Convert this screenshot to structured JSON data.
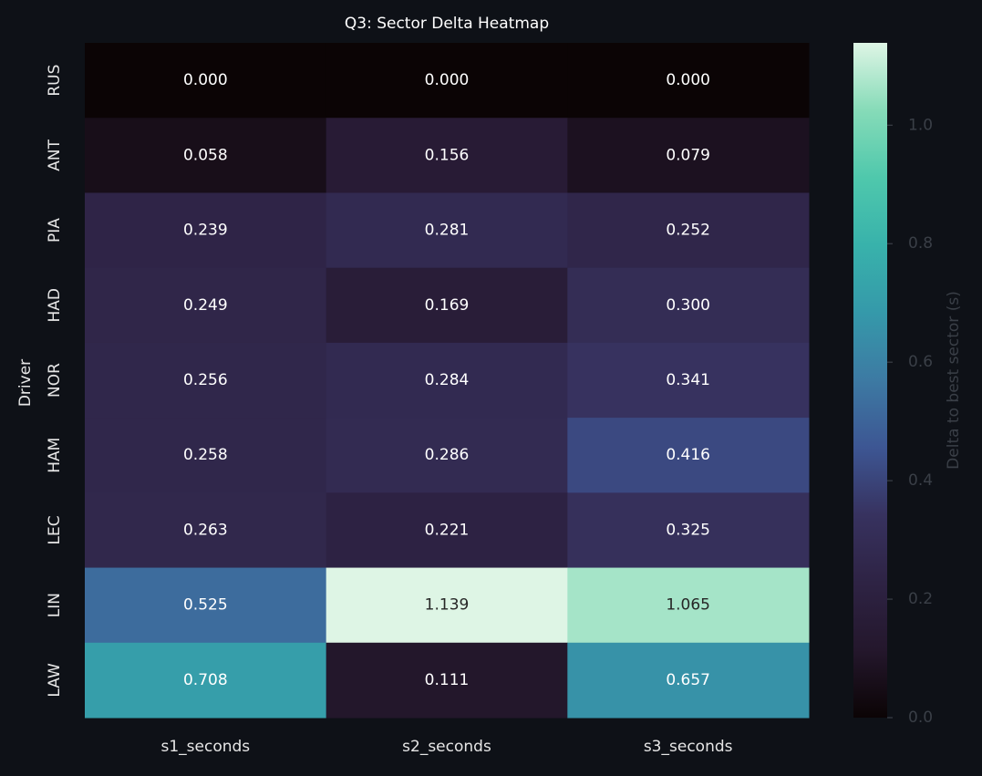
{
  "chart_data": {
    "type": "heatmap",
    "title": "Q3: Sector Delta Heatmap",
    "x_categories": [
      "s1_seconds",
      "s2_seconds",
      "s3_seconds"
    ],
    "y_label": "Driver",
    "y_categories": [
      "RUS",
      "ANT",
      "PIA",
      "HAD",
      "NOR",
      "HAM",
      "LEC",
      "LIN",
      "LAW"
    ],
    "values": [
      [
        0,
        0,
        0
      ],
      [
        0.058,
        0.156,
        0.079
      ],
      [
        0.239,
        0.281,
        0.252
      ],
      [
        0.249,
        0.169,
        0.3
      ],
      [
        0.256,
        0.284,
        0.341
      ],
      [
        0.258,
        0.286,
        0.416
      ],
      [
        0.263,
        0.221,
        0.325
      ],
      [
        0.525,
        1.139,
        1.065
      ],
      [
        0.708,
        0.111,
        0.657
      ]
    ],
    "value_labels": [
      [
        "0.000",
        "0.000",
        "0.000"
      ],
      [
        "0.058",
        "0.156",
        "0.079"
      ],
      [
        "0.239",
        "0.281",
        "0.252"
      ],
      [
        "0.249",
        "0.169",
        "0.300"
      ],
      [
        "0.256",
        "0.284",
        "0.341"
      ],
      [
        "0.258",
        "0.286",
        "0.416"
      ],
      [
        "0.263",
        "0.221",
        "0.325"
      ],
      [
        "0.525",
        "1.139",
        "1.065"
      ],
      [
        "0.708",
        "0.111",
        "0.657"
      ]
    ],
    "colormap": [
      "#0b0405",
      "#24172c",
      "#2e2344",
      "#37325f",
      "#3d5693",
      "#3d7aa3",
      "#3599aa",
      "#38b2ab",
      "#4fc8ac",
      "#86dbb8",
      "#def5e5"
    ],
    "colorbar": {
      "label": "Delta to best sector (s)",
      "lim": [
        0,
        1.139
      ],
      "ticks": [
        {
          "value": 0,
          "label": "0.0"
        },
        {
          "value": 0.2,
          "label": "0.2"
        },
        {
          "value": 0.4,
          "label": "0.4"
        },
        {
          "value": 0.6,
          "label": "0.6"
        },
        {
          "value": 0.8,
          "label": "0.8"
        },
        {
          "value": 1.0,
          "label": "1.0"
        }
      ]
    }
  }
}
